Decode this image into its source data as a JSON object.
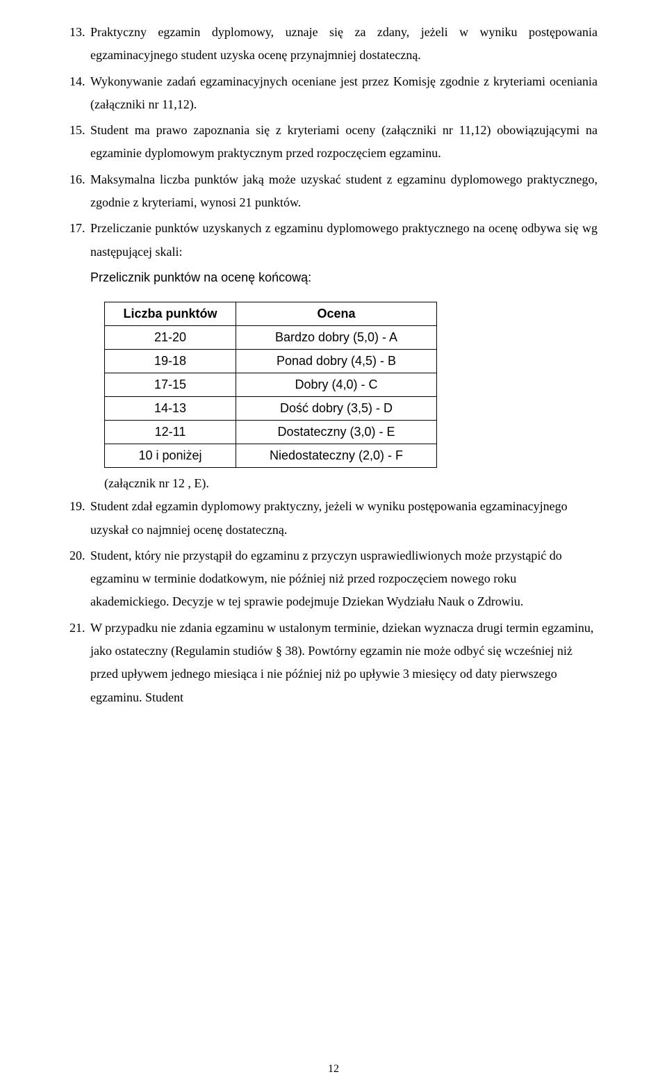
{
  "items": {
    "p13": {
      "num": "13.",
      "text": "Praktyczny egzamin dyplomowy, uznaje się za zdany, jeżeli w wyniku postępowania egzaminacyjnego student uzyska ocenę przynajmniej dostateczną."
    },
    "p14": {
      "num": "14.",
      "text": "Wykonywanie zadań egzaminacyjnych oceniane jest przez Komisję zgodnie z kryteriami oceniania (załączniki nr 11,12)."
    },
    "p15": {
      "num": "15.",
      "text": "Student ma prawo zapoznania się z kryteriami oceny (załączniki nr 11,12) obowiązującymi na egzaminie dyplomowym praktycznym przed rozpoczęciem egzaminu."
    },
    "p16": {
      "num": "16.",
      "text": "Maksymalna liczba punktów jaką może uzyskać student z egzaminu dyplomowego praktycznego, zgodnie z kryteriami, wynosi 21 punktów."
    },
    "p17": {
      "num": "17.",
      "text": "Przeliczanie punktów uzyskanych z egzaminu dyplomowego praktycznego na ocenę odbywa się wg następującej skali:",
      "subtext": "Przelicznik punktów na ocenę końcową:"
    },
    "p19": {
      "num": "19.",
      "text": "Student zdał egzamin dyplomowy praktyczny, jeżeli w wyniku postępowania egzaminacyjnego uzyskał co najmniej ocenę dostateczną."
    },
    "p20": {
      "num": "20.",
      "text": "Student, który nie przystąpił do egzaminu z przyczyn usprawiedliwionych może przystąpić do egzaminu w terminie dodatkowym, nie później niż przed rozpoczęciem nowego roku akademickiego. Decyzje w tej sprawie podejmuje Dziekan Wydziału Nauk o Zdrowiu."
    },
    "p21": {
      "num": "21.",
      "text": "W przypadku nie zdania egzaminu w ustalonym terminie, dziekan wyznacza drugi termin egzaminu, jako ostateczny (Regulamin studiów § 38). Powtórny egzamin nie może odbyć się wcześniej niż przed upływem jednego miesiąca i nie  później niż po upływie 3 miesięcy od daty pierwszego egzaminu. Student"
    }
  },
  "table": {
    "header_points": "Liczba punktów",
    "header_grade": "Ocena",
    "rows": [
      {
        "points": "21-20",
        "grade": "Bardzo dobry (5,0) - A"
      },
      {
        "points": "19-18",
        "grade": "Ponad dobry (4,5) - B"
      },
      {
        "points": "17-15",
        "grade": "Dobry (4,0)     - C"
      },
      {
        "points": "14-13",
        "grade": "Dość dobry (3,5)   - D"
      },
      {
        "points": "12-11",
        "grade": "Dostateczny (3,0) - E"
      },
      {
        "points": "10 i poniżej",
        "grade": "Niedostateczny (2,0) - F"
      }
    ]
  },
  "attachment_note": "(załącznik nr 12 , E).",
  "page_number": "12"
}
